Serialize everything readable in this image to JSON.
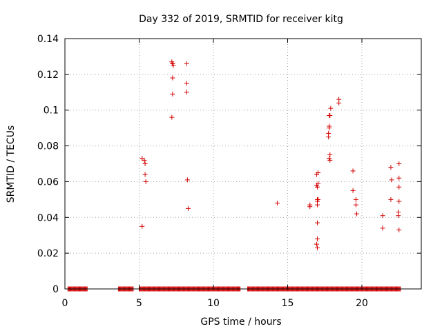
{
  "chart_data": {
    "type": "scatter",
    "title": "Day 332 of 2019, SRMTID for receiver kitg",
    "xlabel": "GPS time / hours",
    "ylabel": "SRMTID / TECUs",
    "xlim": [
      0,
      24
    ],
    "ylim": [
      0,
      0.14
    ],
    "x_ticks": [
      0,
      5,
      10,
      15,
      20
    ],
    "y_ticks": [
      0,
      0.02,
      0.04,
      0.06,
      0.08,
      0.1,
      0.12,
      0.14
    ],
    "x_tick_labels": [
      "0",
      "5",
      "10",
      "15",
      "20"
    ],
    "y_tick_labels": [
      "0",
      "0.02",
      "0.04",
      "0.06",
      "0.08",
      "0.1",
      "0.12",
      "0.14"
    ],
    "grid": true,
    "marker": "+",
    "series": [
      {
        "name": "SRMTID",
        "color": "#d40000",
        "x": [
          5.2,
          5.2,
          5.35,
          5.4,
          5.4,
          5.45,
          7.2,
          7.25,
          7.25,
          7.3,
          7.25,
          7.2,
          7.25,
          8.2,
          8.2,
          8.2,
          8.25,
          8.3,
          14.3,
          16.5,
          16.5,
          16.95,
          17.0,
          17.0,
          17.0,
          17.0,
          17.0,
          17.05,
          17.0,
          17.0,
          17.05,
          16.95,
          17.05,
          16.95,
          17.75,
          17.75,
          17.8,
          17.8,
          17.8,
          17.85,
          17.9,
          17.85,
          17.8,
          17.85,
          18.45,
          18.45,
          19.4,
          19.4,
          19.6,
          19.6,
          19.65,
          21.4,
          21.4,
          21.95,
          22.0,
          21.95,
          22.5,
          22.5,
          22.5,
          22.5,
          22.45,
          22.45,
          22.5
        ],
        "y": [
          0.035,
          0.073,
          0.072,
          0.07,
          0.064,
          0.06,
          0.096,
          0.109,
          0.118,
          0.125,
          0.126,
          0.127,
          0.126,
          0.126,
          0.115,
          0.11,
          0.061,
          0.045,
          0.048,
          0.046,
          0.047,
          0.025,
          0.023,
          0.028,
          0.037,
          0.047,
          0.05,
          0.05,
          0.049,
          0.057,
          0.059,
          0.064,
          0.065,
          0.058,
          0.085,
          0.087,
          0.09,
          0.091,
          0.097,
          0.097,
          0.101,
          0.075,
          0.073,
          0.072,
          0.104,
          0.106,
          0.066,
          0.055,
          0.05,
          0.047,
          0.042,
          0.041,
          0.034,
          0.068,
          0.061,
          0.05,
          0.07,
          0.062,
          0.057,
          0.049,
          0.043,
          0.041,
          0.033
        ]
      }
    ],
    "zero_ranges": [
      [
        0.2,
        1.5
      ],
      [
        3.6,
        4.6
      ],
      [
        5.0,
        11.8
      ],
      [
        12.3,
        22.6
      ]
    ],
    "zero_step": 0.05
  }
}
